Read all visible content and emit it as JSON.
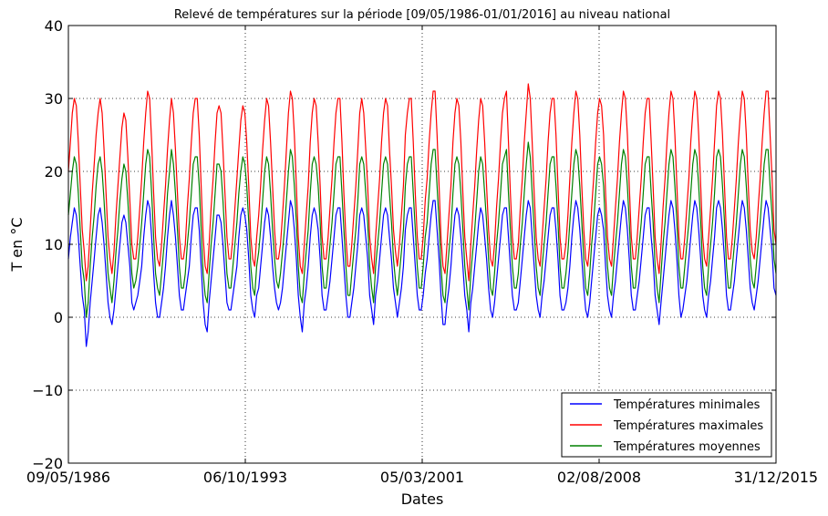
{
  "chart_data": {
    "type": "line",
    "title": "Relevé de températures sur la période [09/05/1986-01/01/2016] au niveau national",
    "xlabel": "Dates",
    "ylabel": "T en °C",
    "x_tick_labels": [
      "09/05/1986",
      "06/10/1993",
      "05/03/2001",
      "02/08/2008",
      "31/12/2015"
    ],
    "x_range": [
      "1986-05-09",
      "2015-12-31"
    ],
    "y_ticks": [
      -20,
      -10,
      0,
      10,
      20,
      30,
      40
    ],
    "y_tick_labels": [
      "−20",
      "−10",
      "0",
      "10",
      "20",
      "30",
      "40"
    ],
    "ylim": [
      -20,
      40
    ],
    "grid": "dotted",
    "legend_position": "lower-right",
    "x_sampling": "monthly (one point per month, 09/05/1986 to 31/12/2015)",
    "series": [
      {
        "name": "Températures minimales",
        "color": "#0000ff",
        "approx_range": [
          -11,
          21
        ],
        "values": [
          8,
          11,
          13,
          15,
          14,
          11,
          7,
          3,
          1,
          -4,
          -2,
          2,
          5,
          8,
          11,
          14,
          15,
          13,
          10,
          6,
          2,
          0,
          -1,
          1,
          4,
          7,
          10,
          13,
          14,
          13,
          10,
          7,
          2,
          1,
          2,
          3,
          5,
          7,
          11,
          14,
          16,
          15,
          11,
          6,
          2,
          0,
          0,
          2,
          4,
          7,
          11,
          14,
          16,
          14,
          11,
          7,
          3,
          1,
          1,
          3,
          5,
          7,
          11,
          14,
          15,
          15,
          12,
          7,
          2,
          -1,
          -2,
          2,
          5,
          8,
          11,
          14,
          14,
          13,
          10,
          6,
          2,
          1,
          1,
          3,
          5,
          7,
          11,
          14,
          15,
          14,
          12,
          8,
          3,
          1,
          0,
          3,
          4,
          7,
          10,
          13,
          15,
          14,
          11,
          7,
          4,
          2,
          1,
          2,
          4,
          7,
          10,
          13,
          16,
          15,
          12,
          8,
          3,
          0,
          -2,
          2,
          4,
          7,
          11,
          14,
          15,
          14,
          12,
          8,
          3,
          1,
          1,
          3,
          5,
          8,
          11,
          14,
          15,
          15,
          11,
          7,
          3,
          0,
          0,
          2,
          4,
          7,
          10,
          14,
          15,
          14,
          11,
          8,
          3,
          1,
          -1,
          3,
          5,
          8,
          11,
          14,
          15,
          14,
          11,
          8,
          4,
          2,
          0,
          2,
          4,
          7,
          12,
          14,
          15,
          15,
          11,
          7,
          3,
          1,
          1,
          3,
          6,
          8,
          11,
          14,
          16,
          16,
          12,
          8,
          3,
          -1,
          -1,
          2,
          4,
          7,
          11,
          14,
          15,
          14,
          11,
          7,
          3,
          1,
          -2,
          2,
          4,
          7,
          10,
          13,
          15,
          14,
          11,
          8,
          4,
          1,
          0,
          2,
          5,
          8,
          11,
          14,
          15,
          15,
          11,
          7,
          3,
          1,
          1,
          2,
          5,
          8,
          11,
          14,
          16,
          15,
          11,
          7,
          3,
          1,
          0,
          3,
          5,
          8,
          11,
          14,
          15,
          15,
          12,
          8,
          3,
          1,
          1,
          2,
          4,
          7,
          11,
          14,
          16,
          15,
          12,
          8,
          4,
          1,
          0,
          2,
          5,
          8,
          11,
          14,
          15,
          14,
          12,
          7,
          3,
          1,
          0,
          3,
          5,
          8,
          11,
          14,
          16,
          15,
          12,
          8,
          3,
          1,
          1,
          3,
          5,
          8,
          11,
          14,
          15,
          15,
          11,
          8,
          3,
          1,
          -1,
          2,
          5,
          8,
          11,
          14,
          16,
          15,
          12,
          8,
          3,
          0,
          1,
          3,
          5,
          8,
          11,
          14,
          16,
          15,
          12,
          8,
          3,
          1,
          0,
          3,
          5,
          8,
          11,
          15,
          16,
          15,
          12,
          8,
          3,
          1,
          1,
          3,
          5,
          8,
          11,
          14,
          16,
          15,
          12,
          8,
          4,
          2,
          1,
          3,
          5,
          8,
          11,
          14,
          16,
          15,
          12,
          9,
          4,
          3
        ]
      },
      {
        "name": "Températures maximales",
        "color": "#ff0000",
        "approx_range": [
          1,
          37
        ],
        "values": [
          20,
          24,
          28,
          30,
          29,
          24,
          18,
          12,
          9,
          5,
          7,
          12,
          17,
          21,
          25,
          28,
          30,
          28,
          23,
          17,
          11,
          8,
          6,
          9,
          14,
          18,
          22,
          26,
          28,
          27,
          22,
          16,
          10,
          8,
          8,
          11,
          15,
          19,
          24,
          28,
          31,
          30,
          24,
          17,
          11,
          8,
          7,
          10,
          14,
          18,
          23,
          27,
          30,
          28,
          23,
          17,
          11,
          8,
          8,
          10,
          15,
          19,
          24,
          28,
          30,
          30,
          25,
          18,
          11,
          7,
          6,
          10,
          15,
          19,
          24,
          28,
          29,
          28,
          23,
          17,
          11,
          8,
          8,
          11,
          15,
          19,
          23,
          27,
          29,
          28,
          24,
          18,
          11,
          8,
          7,
          11,
          14,
          18,
          23,
          27,
          30,
          29,
          24,
          18,
          12,
          8,
          8,
          10,
          14,
          18,
          23,
          28,
          31,
          30,
          25,
          18,
          11,
          7,
          6,
          10,
          14,
          18,
          24,
          28,
          30,
          29,
          24,
          18,
          11,
          8,
          8,
          11,
          15,
          19,
          24,
          28,
          30,
          30,
          24,
          17,
          11,
          7,
          7,
          10,
          14,
          18,
          23,
          28,
          30,
          28,
          23,
          18,
          11,
          8,
          6,
          11,
          15,
          19,
          24,
          28,
          30,
          29,
          23,
          18,
          12,
          9,
          7,
          10,
          14,
          18,
          25,
          28,
          30,
          30,
          24,
          17,
          11,
          8,
          8,
          11,
          16,
          19,
          24,
          28,
          31,
          31,
          25,
          18,
          11,
          7,
          6,
          10,
          14,
          18,
          24,
          28,
          30,
          29,
          24,
          17,
          11,
          8,
          5,
          10,
          14,
          18,
          23,
          27,
          30,
          29,
          24,
          18,
          12,
          8,
          7,
          10,
          15,
          19,
          24,
          28,
          30,
          31,
          24,
          17,
          11,
          8,
          8,
          10,
          15,
          19,
          24,
          28,
          32,
          30,
          24,
          17,
          11,
          8,
          7,
          11,
          15,
          19,
          24,
          28,
          30,
          30,
          25,
          18,
          11,
          8,
          8,
          10,
          14,
          19,
          24,
          28,
          31,
          30,
          25,
          18,
          12,
          8,
          7,
          10,
          15,
          19,
          24,
          28,
          30,
          29,
          25,
          17,
          11,
          8,
          7,
          11,
          15,
          19,
          24,
          28,
          31,
          30,
          25,
          18,
          11,
          8,
          8,
          11,
          15,
          19,
          24,
          28,
          30,
          30,
          24,
          18,
          11,
          8,
          6,
          10,
          15,
          19,
          24,
          28,
          31,
          30,
          25,
          18,
          11,
          8,
          8,
          11,
          15,
          19,
          24,
          28,
          31,
          30,
          25,
          18,
          11,
          8,
          7,
          11,
          15,
          19,
          24,
          29,
          31,
          30,
          25,
          18,
          11,
          8,
          8,
          11,
          15,
          19,
          24,
          28,
          31,
          30,
          25,
          18,
          12,
          9,
          8,
          11,
          15,
          19,
          24,
          28,
          31,
          31,
          25,
          19,
          12,
          10
        ]
      },
      {
        "name": "Températures moyennes",
        "color": "#008000",
        "approx_range": [
          -8,
          26
        ],
        "values": [
          14,
          17,
          20,
          22,
          21,
          17,
          12,
          7,
          5,
          0,
          2,
          7,
          11,
          14,
          18,
          21,
          22,
          20,
          16,
          11,
          6,
          4,
          2,
          5,
          9,
          12,
          16,
          19,
          21,
          20,
          16,
          11,
          6,
          4,
          5,
          7,
          10,
          13,
          17,
          21,
          23,
          22,
          17,
          11,
          6,
          4,
          3,
          6,
          9,
          12,
          17,
          20,
          23,
          21,
          17,
          12,
          7,
          4,
          4,
          6,
          10,
          13,
          17,
          21,
          22,
          22,
          18,
          12,
          6,
          3,
          2,
          6,
          10,
          13,
          17,
          21,
          21,
          20,
          16,
          11,
          6,
          4,
          4,
          7,
          10,
          13,
          17,
          20,
          22,
          21,
          18,
          13,
          7,
          4,
          3,
          7,
          9,
          12,
          16,
          20,
          22,
          21,
          17,
          12,
          8,
          5,
          4,
          6,
          9,
          12,
          16,
          20,
          23,
          22,
          18,
          13,
          7,
          3,
          2,
          6,
          9,
          12,
          17,
          21,
          22,
          21,
          18,
          13,
          7,
          4,
          4,
          7,
          10,
          13,
          17,
          21,
          22,
          22,
          17,
          12,
          7,
          3,
          3,
          6,
          9,
          12,
          16,
          21,
          22,
          21,
          17,
          13,
          7,
          4,
          2,
          7,
          10,
          13,
          17,
          21,
          22,
          21,
          17,
          13,
          8,
          5,
          3,
          6,
          9,
          12,
          18,
          21,
          22,
          22,
          17,
          12,
          7,
          4,
          4,
          7,
          11,
          13,
          17,
          21,
          23,
          23,
          18,
          13,
          7,
          3,
          2,
          6,
          9,
          12,
          17,
          21,
          22,
          21,
          17,
          12,
          7,
          4,
          1,
          6,
          9,
          12,
          16,
          20,
          22,
          21,
          17,
          13,
          8,
          4,
          3,
          6,
          10,
          13,
          17,
          21,
          22,
          23,
          17,
          12,
          7,
          4,
          4,
          6,
          10,
          13,
          17,
          21,
          24,
          22,
          17,
          12,
          7,
          4,
          3,
          7,
          10,
          13,
          17,
          21,
          22,
          22,
          18,
          13,
          7,
          4,
          4,
          6,
          9,
          13,
          17,
          21,
          23,
          22,
          18,
          13,
          8,
          4,
          3,
          6,
          10,
          13,
          17,
          21,
          22,
          21,
          18,
          12,
          7,
          4,
          3,
          7,
          10,
          13,
          17,
          21,
          23,
          22,
          18,
          13,
          7,
          4,
          4,
          7,
          10,
          13,
          17,
          21,
          22,
          22,
          17,
          13,
          7,
          4,
          2,
          6,
          10,
          13,
          17,
          21,
          23,
          22,
          18,
          13,
          7,
          4,
          4,
          7,
          10,
          13,
          17,
          21,
          23,
          22,
          18,
          13,
          7,
          4,
          3,
          7,
          10,
          13,
          17,
          22,
          23,
          22,
          18,
          13,
          7,
          4,
          4,
          7,
          10,
          13,
          17,
          21,
          23,
          22,
          18,
          13,
          8,
          5,
          4,
          7,
          10,
          13,
          17,
          21,
          23,
          23,
          18,
          14,
          8,
          6
        ]
      }
    ]
  }
}
